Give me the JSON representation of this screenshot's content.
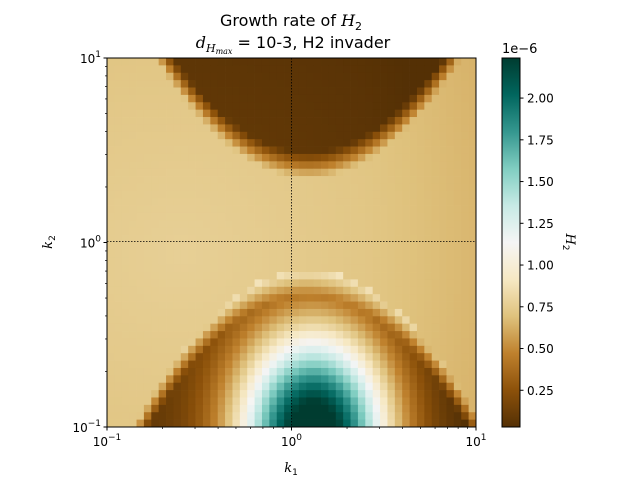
{
  "chart_data": {
    "type": "heatmap",
    "title": {
      "line1_text": "Growth rate of ",
      "line1_var": "H",
      "line1_sub": "2",
      "line2_var": "d",
      "line2_sub_var": "H",
      "line2_sub_sub": "max",
      "line2_text": " = 10-3, H2 invader"
    },
    "xlabel": {
      "var": "k",
      "sub": "1"
    },
    "ylabel": {
      "var": "k",
      "sub": "2"
    },
    "xscale": "log",
    "yscale": "log",
    "xlim": [
      0.1,
      10
    ],
    "ylim": [
      0.1,
      10
    ],
    "x_ticks": [
      {
        "value": 0.1,
        "base": "10",
        "exp": "−1"
      },
      {
        "value": 1,
        "base": "10",
        "exp": "0"
      },
      {
        "value": 10,
        "base": "10",
        "exp": "1"
      }
    ],
    "y_ticks": [
      {
        "value": 0.1,
        "base": "10",
        "exp": "−1"
      },
      {
        "value": 1,
        "base": "10",
        "exp": "0"
      },
      {
        "value": 10,
        "base": "10",
        "exp": "1"
      }
    ],
    "reference_lines": {
      "x": 1,
      "y": 1,
      "style": "dotted",
      "color": "#000000"
    },
    "grid_cells": 50,
    "colorbar": {
      "label_var": "H",
      "label_sub": "2",
      "multiplier": "1e−6",
      "range": [
        0.03,
        2.24
      ],
      "ticks": [
        "0.25",
        "0.50",
        "0.75",
        "1.00",
        "1.25",
        "1.50",
        "1.75",
        "2.00"
      ],
      "colormap": "BrBG",
      "colormap_stops": [
        "#543005",
        "#8c510a",
        "#bf812d",
        "#dfc27d",
        "#f6e8c3",
        "#f5f5f5",
        "#c7eae5",
        "#80cdc1",
        "#35978f",
        "#01665e",
        "#003c30"
      ]
    },
    "value_model": {
      "description_levels_e6": {
        "background_beige": 0.72,
        "top_lobe_peak": 0.05,
        "bottom_lobe_peak": 2.24
      }
    }
  }
}
